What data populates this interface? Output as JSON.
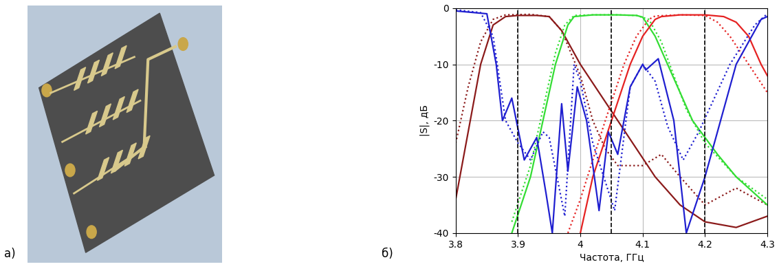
{
  "panel_labels": [
    "а)",
    "б)"
  ],
  "chart_data": {
    "type": "line",
    "x_label": "Частота, ГГц",
    "y_label": "|S|, дБ",
    "xlim": [
      3.8,
      4.3
    ],
    "xticks": [
      3.8,
      3.9,
      4,
      4.1,
      4.2,
      4.3
    ],
    "ylim": [
      -40,
      0
    ],
    "yticks": [
      0,
      -10,
      -20,
      -30,
      -40
    ],
    "grid": true,
    "vlines": [
      3.9,
      4.05,
      4.2
    ],
    "series": [
      {
        "color": "#8b1a1a",
        "line_style": "solid",
        "x": [
          3.8,
          3.82,
          3.84,
          3.86,
          3.88,
          3.9,
          3.93,
          3.95,
          3.97,
          4.0,
          4.03,
          4.06,
          4.09,
          4.12,
          4.16,
          4.2,
          4.25,
          4.3
        ],
        "values": [
          -34,
          -22,
          -10,
          -3,
          -1.5,
          -1.3,
          -1.3,
          -1.5,
          -4,
          -10,
          -15,
          -20,
          -25,
          -30,
          -35,
          -38,
          -39,
          -37
        ]
      },
      {
        "color": "#8b1a1a",
        "line_style": "dotted",
        "x": [
          3.8,
          3.82,
          3.84,
          3.86,
          3.88,
          3.92,
          3.95,
          3.97,
          4.0,
          4.02,
          4.04,
          4.06,
          4.1,
          4.13,
          4.16,
          4.2,
          4.25,
          4.3
        ],
        "values": [
          -24,
          -14,
          -6,
          -2,
          -1.2,
          -1.1,
          -1.5,
          -4,
          -12,
          -20,
          -25,
          -28,
          -28,
          -26,
          -30,
          -35,
          -32,
          -35
        ]
      },
      {
        "color": "#33dd33",
        "line_style": "solid",
        "x": [
          3.89,
          3.92,
          3.94,
          3.96,
          3.98,
          3.99,
          4.02,
          4.06,
          4.09,
          4.1,
          4.12,
          4.14,
          4.16,
          4.18,
          4.22,
          4.25,
          4.3
        ],
        "values": [
          -40,
          -30,
          -20,
          -10,
          -3,
          -1.5,
          -1.2,
          -1.2,
          -1.3,
          -1.6,
          -5,
          -10,
          -15,
          -20,
          -26,
          -30,
          -35
        ]
      },
      {
        "color": "#33dd33",
        "line_style": "dotted",
        "x": [
          3.89,
          3.92,
          3.94,
          3.96,
          3.975,
          3.99,
          4.02,
          4.06,
          4.09,
          4.11,
          4.13,
          4.15,
          4.17,
          4.2,
          4.25,
          4.3
        ],
        "values": [
          -38,
          -28,
          -18,
          -8,
          -3,
          -1.3,
          -1.2,
          -1.2,
          -1.3,
          -2,
          -6,
          -12,
          -18,
          -24,
          -30,
          -34
        ]
      },
      {
        "color": "#e52222",
        "line_style": "solid",
        "x": [
          4.0,
          4.02,
          4.05,
          4.08,
          4.1,
          4.12,
          4.13,
          4.16,
          4.2,
          4.23,
          4.25,
          4.27,
          4.29,
          4.3
        ],
        "values": [
          -40,
          -30,
          -20,
          -10,
          -5,
          -2,
          -1.5,
          -1.2,
          -1.2,
          -1.5,
          -2.5,
          -5,
          -10,
          -12
        ]
      },
      {
        "color": "#e52222",
        "line_style": "dotted",
        "x": [
          3.98,
          4.0,
          4.02,
          4.04,
          4.07,
          4.09,
          4.11,
          4.12,
          4.16,
          4.2,
          4.22,
          4.24,
          4.27,
          4.3
        ],
        "values": [
          -40,
          -34,
          -27,
          -20,
          -10,
          -5,
          -2,
          -1.4,
          -1.2,
          -1.3,
          -2.5,
          -5,
          -10,
          -15
        ]
      },
      {
        "color": "#1f1fd0",
        "line_style": "solid",
        "x": [
          3.8,
          3.85,
          3.865,
          3.875,
          3.89,
          3.91,
          3.93,
          3.945,
          3.955,
          3.97,
          3.98,
          3.995,
          4.01,
          4.03,
          4.045,
          4.06,
          4.08,
          4.1,
          4.105,
          4.125,
          4.15,
          4.17,
          4.2,
          4.25,
          4.29,
          4.3
        ],
        "values": [
          -0.5,
          -1,
          -10,
          -20,
          -16,
          -27,
          -23,
          -33,
          -40,
          -17,
          -29,
          -14,
          -20,
          -36,
          -22,
          -26,
          -14,
          -10,
          -11,
          -9,
          -20,
          -40,
          -30,
          -10,
          -2,
          -1.5
        ]
      },
      {
        "color": "#1f1fd0",
        "line_style": "dotted",
        "x": [
          3.8,
          3.84,
          3.86,
          3.88,
          3.9,
          3.92,
          3.94,
          3.95,
          3.975,
          3.99,
          4.0,
          4.02,
          4.055,
          4.08,
          4.1,
          4.12,
          4.14,
          4.165,
          4.19,
          4.24,
          4.28,
          4.3
        ],
        "values": [
          -0.3,
          -0.8,
          -5,
          -20,
          -24,
          -27,
          -22,
          -23,
          -37,
          -10,
          -13,
          -24,
          -36,
          -14,
          -10,
          -13,
          -21,
          -27,
          -22,
          -10,
          -3,
          -1
        ]
      }
    ]
  }
}
